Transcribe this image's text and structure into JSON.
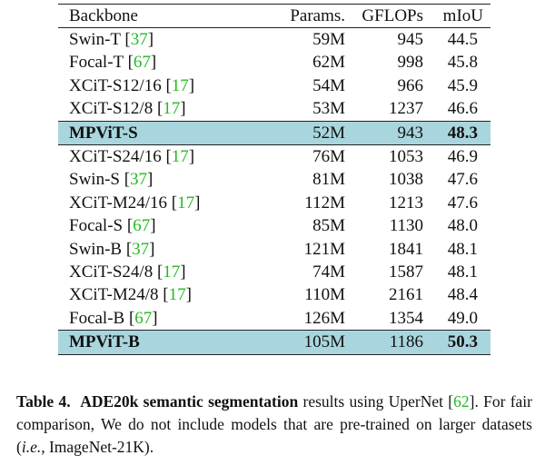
{
  "table": {
    "header": [
      "Backbone",
      "Params.",
      "GFLOPs",
      "mIoU"
    ],
    "rows": [
      {
        "backbone": "Swin-T",
        "cite": "[37]",
        "params": "59M",
        "gflops": "945",
        "miou": "44.5"
      },
      {
        "backbone": "Focal-T",
        "cite": "[67]",
        "params": "62M",
        "gflops": "998",
        "miou": "45.8"
      },
      {
        "backbone": "XCiT-S12/16",
        "cite": "[17]",
        "params": "54M",
        "gflops": "966",
        "miou": "45.9"
      },
      {
        "backbone": "XCiT-S12/8",
        "cite": "[17]",
        "params": "53M",
        "gflops": "1237",
        "miou": "46.6"
      },
      {
        "backbone": "MPViT-S",
        "params": "52M",
        "gflops": "943",
        "miou": "48.3",
        "highlight": true
      },
      {
        "backbone": "XCiT-S24/16",
        "cite": "[17]",
        "params": "76M",
        "gflops": "1053",
        "miou": "46.9"
      },
      {
        "backbone": "Swin-S",
        "cite": "[37]",
        "params": "81M",
        "gflops": "1038",
        "miou": "47.6"
      },
      {
        "backbone": "XCiT-M24/16",
        "cite": "[17]",
        "params": "112M",
        "gflops": "1213",
        "miou": "47.6"
      },
      {
        "backbone": "Focal-S",
        "cite": "[67]",
        "params": "85M",
        "gflops": "1130",
        "miou": "48.0"
      },
      {
        "backbone": "Swin-B",
        "cite": "[37]",
        "params": "121M",
        "gflops": "1841",
        "miou": "48.1"
      },
      {
        "backbone": "XCiT-S24/8",
        "cite": "[17]",
        "params": "74M",
        "gflops": "1587",
        "miou": "48.1"
      },
      {
        "backbone": "XCiT-M24/8",
        "cite": "[17]",
        "params": "110M",
        "gflops": "2161",
        "miou": "48.4"
      },
      {
        "backbone": "Focal-B",
        "cite": "[67]",
        "params": "126M",
        "gflops": "1354",
        "miou": "49.0"
      },
      {
        "backbone": "MPViT-B",
        "params": "105M",
        "gflops": "1186",
        "miou": "50.3",
        "highlight": true
      }
    ]
  },
  "caption": {
    "label": "Table 4.",
    "emphasis": "ADE20k semantic segmentation",
    "text1": " results using UperNet ",
    "cite": "[62]",
    "text2": ". For fair comparison, We do not include models that are pre-trained on larger datasets (",
    "italic": "i.e.,",
    "text3": " ImageNet-21K)."
  }
}
